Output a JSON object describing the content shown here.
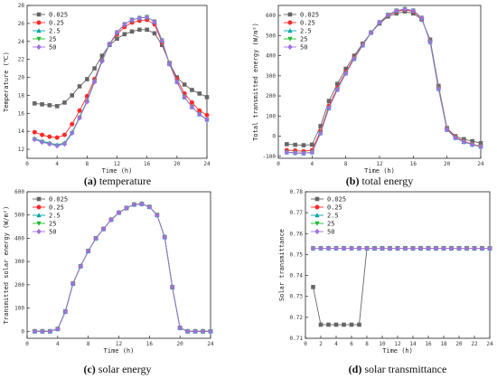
{
  "colors": {
    "s1": "#666666",
    "s2": "#ff2a2a",
    "s3": "#00a6a6",
    "s4": "#22b830",
    "s5": "#a070e0"
  },
  "chart_data": [
    {
      "type": "line",
      "panel": "a",
      "caption_tag": "(a)",
      "caption": "temperature",
      "xlabel": "Time (h)",
      "ylabel": "Temperature (℃)",
      "xlim": [
        0,
        24
      ],
      "xticks": [
        0,
        4,
        8,
        12,
        16,
        20,
        24
      ],
      "ylim": [
        11,
        28
      ],
      "yticks": [
        12,
        14,
        16,
        18,
        20,
        22,
        24,
        26,
        28
      ],
      "legend_position": "top-left",
      "x": [
        1,
        2,
        3,
        4,
        5,
        6,
        7,
        8,
        9,
        10,
        11,
        12,
        13,
        14,
        15,
        16,
        17,
        18,
        19,
        20,
        21,
        22,
        23,
        24
      ],
      "series": [
        {
          "name": "0.025",
          "color_key": "s1",
          "marker": "square",
          "values": [
            17.1,
            17.0,
            16.9,
            16.8,
            17.2,
            18.0,
            19.0,
            19.8,
            21.0,
            22.4,
            23.6,
            24.3,
            24.8,
            25.1,
            25.3,
            25.3,
            24.9,
            23.6,
            21.6,
            20.0,
            19.2,
            18.6,
            18.2,
            17.8
          ]
        },
        {
          "name": "0.25",
          "color_key": "s2",
          "marker": "circle",
          "values": [
            13.9,
            13.6,
            13.4,
            13.3,
            13.6,
            14.8,
            16.3,
            17.9,
            19.8,
            21.9,
            23.7,
            24.8,
            25.6,
            26.1,
            26.3,
            26.4,
            25.9,
            23.9,
            21.5,
            19.8,
            18.2,
            17.2,
            16.3,
            15.8
          ]
        },
        {
          "name": "2.5",
          "color_key": "s3",
          "marker": "triangle-up",
          "values": [
            13.2,
            12.9,
            12.7,
            12.5,
            12.7,
            13.9,
            15.6,
            17.4,
            19.6,
            21.9,
            23.7,
            25.0,
            25.9,
            26.4,
            26.6,
            26.7,
            26.2,
            24.1,
            21.5,
            19.5,
            17.8,
            16.7,
            15.9,
            15.3
          ]
        },
        {
          "name": "25",
          "color_key": "s4",
          "marker": "triangle-down",
          "values": [
            13.1,
            12.8,
            12.6,
            12.4,
            12.6,
            13.8,
            15.5,
            17.3,
            19.5,
            21.8,
            23.7,
            25.0,
            25.9,
            26.4,
            26.6,
            26.7,
            26.2,
            24.1,
            21.5,
            19.5,
            17.8,
            16.7,
            15.9,
            15.3
          ]
        },
        {
          "name": "50",
          "color_key": "s5",
          "marker": "diamond",
          "values": [
            13.1,
            12.8,
            12.6,
            12.4,
            12.6,
            13.8,
            15.5,
            17.3,
            19.5,
            21.8,
            23.7,
            25.0,
            25.9,
            26.4,
            26.6,
            26.7,
            26.2,
            24.1,
            21.5,
            19.5,
            17.8,
            16.7,
            15.9,
            15.3
          ]
        }
      ]
    },
    {
      "type": "line",
      "panel": "b",
      "caption_tag": "(b)",
      "caption": "total energy",
      "xlabel": "Time (h)",
      "ylabel": "Total transmitted energy (W/m²)",
      "xlim": [
        0,
        24
      ],
      "xticks": [
        0,
        4,
        8,
        12,
        16,
        20,
        24
      ],
      "ylim": [
        -110,
        650
      ],
      "yticks": [
        -100,
        0,
        100,
        200,
        300,
        400,
        500,
        600
      ],
      "legend_position": "top-left",
      "x": [
        1,
        2,
        3,
        4,
        5,
        6,
        7,
        8,
        9,
        10,
        11,
        12,
        13,
        14,
        15,
        16,
        17,
        18,
        19,
        20,
        21,
        22,
        23,
        24
      ],
      "series": [
        {
          "name": "0.025",
          "color_key": "s1",
          "marker": "square",
          "values": [
            -40,
            -43,
            -45,
            -42,
            50,
            175,
            260,
            335,
            400,
            460,
            515,
            560,
            595,
            610,
            620,
            610,
            580,
            480,
            250,
            40,
            0,
            -15,
            -25,
            -35
          ]
        },
        {
          "name": "0.25",
          "color_key": "s2",
          "marker": "circle",
          "values": [
            -70,
            -72,
            -75,
            -70,
            25,
            150,
            240,
            320,
            390,
            455,
            515,
            565,
            600,
            620,
            628,
            620,
            585,
            470,
            240,
            35,
            -5,
            -25,
            -40,
            -50
          ]
        },
        {
          "name": "2.5",
          "color_key": "s3",
          "marker": "triangle-up",
          "values": [
            -80,
            -83,
            -85,
            -80,
            15,
            140,
            232,
            313,
            385,
            452,
            515,
            566,
            603,
            624,
            632,
            624,
            588,
            468,
            236,
            32,
            -8,
            -28,
            -42,
            -52
          ]
        },
        {
          "name": "25",
          "color_key": "s4",
          "marker": "triangle-down",
          "values": [
            -80,
            -83,
            -85,
            -80,
            15,
            140,
            232,
            313,
            385,
            452,
            515,
            566,
            603,
            624,
            632,
            624,
            588,
            468,
            236,
            32,
            -8,
            -28,
            -42,
            -52
          ]
        },
        {
          "name": "50",
          "color_key": "s5",
          "marker": "diamond",
          "values": [
            -80,
            -83,
            -85,
            -80,
            15,
            140,
            232,
            313,
            385,
            452,
            515,
            566,
            603,
            624,
            632,
            624,
            588,
            468,
            236,
            32,
            -8,
            -28,
            -42,
            -52
          ]
        }
      ]
    },
    {
      "type": "line",
      "panel": "c",
      "caption_tag": "(c)",
      "caption": "solar energy",
      "xlabel": "Time (h)",
      "ylabel": "Transmitted solar energy (W/m²)",
      "xlim": [
        0,
        24
      ],
      "xticks": [
        0,
        4,
        8,
        12,
        16,
        20,
        24
      ],
      "ylim": [
        -30,
        600
      ],
      "yticks": [
        0,
        100,
        200,
        300,
        400,
        500,
        600
      ],
      "legend_position": "top-left",
      "x": [
        1,
        2,
        3,
        4,
        5,
        6,
        7,
        8,
        9,
        10,
        11,
        12,
        13,
        14,
        15,
        16,
        17,
        18,
        19,
        20,
        21,
        22,
        23,
        24
      ],
      "series": [
        {
          "name": "0.025",
          "color_key": "s1",
          "marker": "square",
          "values": [
            0,
            0,
            0,
            10,
            85,
            205,
            280,
            345,
            400,
            440,
            480,
            510,
            530,
            545,
            548,
            535,
            500,
            405,
            190,
            15,
            0,
            0,
            0,
            0
          ]
        },
        {
          "name": "0.25",
          "color_key": "s2",
          "marker": "circle",
          "values": [
            0,
            0,
            0,
            10,
            85,
            205,
            280,
            345,
            400,
            440,
            480,
            510,
            530,
            545,
            548,
            535,
            500,
            405,
            190,
            15,
            0,
            0,
            0,
            0
          ]
        },
        {
          "name": "2.5",
          "color_key": "s3",
          "marker": "triangle-up",
          "values": [
            0,
            0,
            0,
            10,
            85,
            205,
            280,
            345,
            400,
            440,
            480,
            510,
            530,
            545,
            548,
            535,
            500,
            405,
            190,
            15,
            0,
            0,
            0,
            0
          ]
        },
        {
          "name": "25",
          "color_key": "s4",
          "marker": "triangle-down",
          "values": [
            0,
            0,
            0,
            10,
            85,
            205,
            280,
            345,
            400,
            440,
            480,
            510,
            530,
            545,
            548,
            535,
            500,
            405,
            190,
            15,
            0,
            0,
            0,
            0
          ]
        },
        {
          "name": "50",
          "color_key": "s5",
          "marker": "diamond",
          "values": [
            0,
            0,
            0,
            10,
            85,
            205,
            280,
            345,
            400,
            440,
            480,
            510,
            530,
            545,
            548,
            535,
            500,
            405,
            190,
            15,
            0,
            0,
            0,
            0
          ]
        }
      ]
    },
    {
      "type": "line",
      "panel": "d",
      "caption_tag": "(d)",
      "caption": "solar transmittance",
      "xlabel": "Time (h)",
      "ylabel": "Solar transmittance",
      "xlim": [
        0,
        24
      ],
      "xticks": [
        0,
        2,
        4,
        6,
        8,
        10,
        12,
        14,
        16,
        18,
        20,
        22,
        24
      ],
      "ylim": [
        0.71,
        0.78
      ],
      "yticks": [
        0.71,
        0.72,
        0.73,
        0.74,
        0.75,
        0.76,
        0.77,
        0.78
      ],
      "legend_position": "top-left",
      "x": [
        1,
        2,
        3,
        4,
        5,
        6,
        7,
        8,
        9,
        10,
        11,
        12,
        13,
        14,
        15,
        16,
        17,
        18,
        19,
        20,
        21,
        22,
        23,
        24
      ],
      "series": [
        {
          "name": "0.025",
          "color_key": "s1",
          "marker": "square",
          "values": [
            0.7345,
            0.7165,
            0.7165,
            0.7165,
            0.7165,
            0.7165,
            0.7165,
            0.753,
            0.753,
            0.753,
            0.753,
            0.753,
            0.753,
            0.753,
            0.753,
            0.753,
            0.753,
            0.753,
            0.753,
            0.753,
            0.753,
            0.753,
            0.753,
            0.753
          ]
        },
        {
          "name": "0.25",
          "color_key": "s2",
          "marker": "circle",
          "values": [
            0.753,
            0.753,
            0.753,
            0.753,
            0.753,
            0.753,
            0.753,
            0.753,
            0.753,
            0.753,
            0.753,
            0.753,
            0.753,
            0.753,
            0.753,
            0.753,
            0.753,
            0.753,
            0.753,
            0.753,
            0.753,
            0.753,
            0.753,
            0.753
          ]
        },
        {
          "name": "2.5",
          "color_key": "s3",
          "marker": "triangle-up",
          "values": [
            0.753,
            0.753,
            0.753,
            0.753,
            0.753,
            0.753,
            0.753,
            0.753,
            0.753,
            0.753,
            0.753,
            0.753,
            0.753,
            0.753,
            0.753,
            0.753,
            0.753,
            0.753,
            0.753,
            0.753,
            0.753,
            0.753,
            0.753,
            0.753
          ]
        },
        {
          "name": "25",
          "color_key": "s4",
          "marker": "triangle-down",
          "values": [
            0.753,
            0.753,
            0.753,
            0.753,
            0.753,
            0.753,
            0.753,
            0.753,
            0.753,
            0.753,
            0.753,
            0.753,
            0.753,
            0.753,
            0.753,
            0.753,
            0.753,
            0.753,
            0.753,
            0.753,
            0.753,
            0.753,
            0.753,
            0.753
          ]
        },
        {
          "name": "50",
          "color_key": "s5",
          "marker": "diamond",
          "values": [
            0.753,
            0.753,
            0.753,
            0.753,
            0.753,
            0.753,
            0.753,
            0.753,
            0.753,
            0.753,
            0.753,
            0.753,
            0.753,
            0.753,
            0.753,
            0.753,
            0.753,
            0.753,
            0.753,
            0.753,
            0.753,
            0.753,
            0.753,
            0.753
          ]
        }
      ]
    }
  ]
}
